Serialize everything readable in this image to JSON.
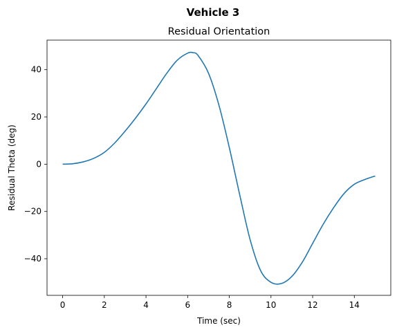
{
  "figure": {
    "suptitle": "Vehicle 3"
  },
  "chart_data": {
    "type": "line",
    "title": "Residual Orientation",
    "xlabel": "Time (sec)",
    "ylabel": "Residual Theta (deg)",
    "xlim": [
      -0.75,
      15.75
    ],
    "ylim": [
      -55.5,
      52.5
    ],
    "xticks": [
      0,
      2,
      4,
      6,
      8,
      10,
      12,
      14
    ],
    "yticks": [
      -40,
      -20,
      0,
      20,
      40
    ],
    "grid": false,
    "legend": "none",
    "series": [
      {
        "color": "#1f77b4",
        "x": [
          0,
          0.5,
          1,
          1.5,
          2,
          2.5,
          3,
          3.5,
          4,
          4.5,
          5,
          5.5,
          6,
          6.25,
          6.5,
          7,
          7.5,
          8,
          8.5,
          9,
          9.5,
          10,
          10.5,
          11,
          11.5,
          12,
          12.5,
          13,
          13.5,
          14,
          14.5,
          15
        ],
        "y": [
          0,
          0.2,
          1.0,
          2.5,
          5.0,
          9.0,
          14.0,
          19.5,
          25.5,
          32.0,
          38.5,
          44.0,
          47.0,
          47.2,
          46.0,
          38.5,
          25.0,
          7.0,
          -13.0,
          -32.0,
          -45.0,
          -50.0,
          -50.5,
          -47.5,
          -41.5,
          -33.5,
          -25.5,
          -18.5,
          -12.5,
          -8.5,
          -6.5,
          -5.0
        ]
      }
    ]
  }
}
